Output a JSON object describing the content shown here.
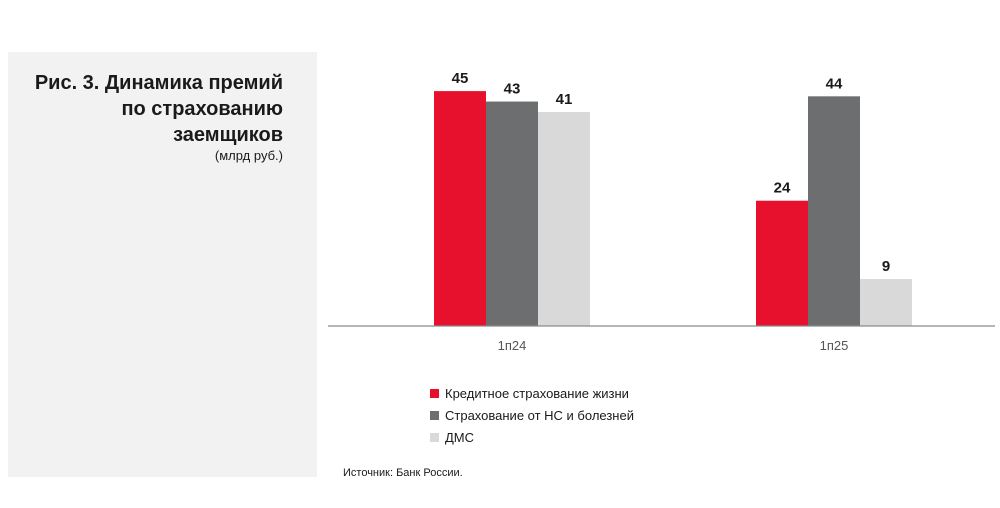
{
  "panel": {
    "title": "Рис. 3. Динамика премий по страхованию заемщиков",
    "subtitle": "(млрд руб.)"
  },
  "chart_data": {
    "type": "bar",
    "title": "Рис. 3. Динамика премий по страхованию заемщиков",
    "subtitle": "(млрд руб.)",
    "categories": [
      "1п24",
      "1п25"
    ],
    "series": [
      {
        "name": "Кредитное страхование жизни",
        "values": [
          45,
          24
        ],
        "color": "#e8112d"
      },
      {
        "name": "Страхование от НС и болезней",
        "values": [
          43,
          44
        ],
        "color": "#6d6e6f"
      },
      {
        "name": "ДМС",
        "values": [
          41,
          9
        ],
        "color": "#d9d9d9"
      }
    ],
    "ylim": [
      0,
      50
    ],
    "grid": false,
    "legend_position": "bottom-left"
  },
  "source": "Источник: Банк России."
}
